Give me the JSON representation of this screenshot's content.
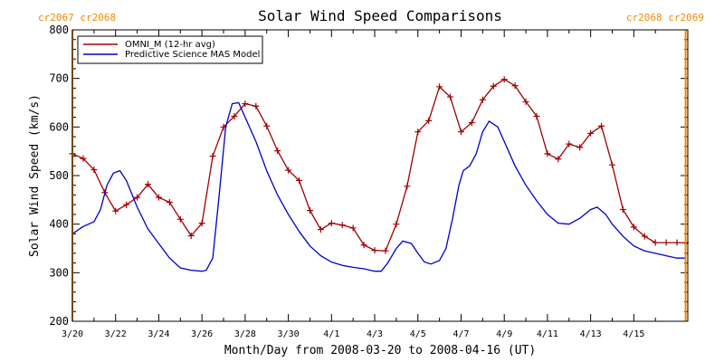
{
  "chart_data": {
    "type": "line",
    "title": "Solar Wind Speed Comparisons",
    "xlabel": "Month/Day from 2008-03-20 to 2008-04-16 (UT)",
    "ylabel": "Solar Wind Speed (km/s)",
    "xlim": [
      0,
      28.5
    ],
    "ylim": [
      200,
      800
    ],
    "y_ticks": [
      200,
      300,
      400,
      500,
      600,
      700,
      800
    ],
    "x_ticks": [
      {
        "x": 0,
        "label": "3/20"
      },
      {
        "x": 2,
        "label": "3/22"
      },
      {
        "x": 4,
        "label": "3/24"
      },
      {
        "x": 6,
        "label": "3/26"
      },
      {
        "x": 8,
        "label": "3/28"
      },
      {
        "x": 10,
        "label": "3/30"
      },
      {
        "x": 12,
        "label": "4/1"
      },
      {
        "x": 14,
        "label": "4/3"
      },
      {
        "x": 16,
        "label": "4/5"
      },
      {
        "x": 18,
        "label": "4/7"
      },
      {
        "x": 20,
        "label": "4/9"
      },
      {
        "x": 22,
        "label": "4/11"
      },
      {
        "x": 24,
        "label": "4/13"
      },
      {
        "x": 26,
        "label": "4/15"
      }
    ],
    "carrington_markers": [
      {
        "x": 0.0,
        "label": "cr2067 cr2068",
        "side": "left"
      },
      {
        "x": 28.4,
        "label": "cr2068 cr2069",
        "side": "right"
      }
    ],
    "legend_position": "top-left",
    "series": [
      {
        "name": "OMNI_M (12-hr avg)",
        "color": "#a00000",
        "marker": "plus",
        "x": [
          0,
          0.5,
          1,
          1.5,
          2,
          2.5,
          3,
          3.5,
          4,
          4.5,
          5,
          5.5,
          6,
          6.5,
          7,
          7.5,
          8,
          8.5,
          9,
          9.5,
          10,
          10.5,
          11,
          11.5,
          12,
          12.5,
          13,
          13.5,
          14,
          14.5,
          15,
          15.5,
          16,
          16.5,
          17,
          17.5,
          18,
          18.5,
          19,
          19.5,
          20,
          20.5,
          21,
          21.5,
          22,
          22.5,
          23,
          23.5,
          24,
          24.5,
          25,
          25.5,
          26,
          26.5,
          27,
          27.5,
          28,
          28.4
        ],
        "y": [
          545,
          535,
          512,
          465,
          427,
          440,
          455,
          482,
          455,
          445,
          410,
          376,
          402,
          540,
          600,
          622,
          648,
          643,
          602,
          551,
          511,
          490,
          428,
          389,
          402,
          398,
          392,
          357,
          346,
          345,
          400,
          478,
          590,
          613,
          683,
          662,
          590,
          609,
          656,
          684,
          698,
          685,
          652,
          622,
          545,
          534,
          565,
          558,
          587,
          602,
          522,
          430,
          394,
          375,
          362,
          362,
          362,
          362
        ]
      },
      {
        "name": "Predictive Science MAS Model",
        "color": "#0000c8",
        "marker": "none",
        "x": [
          0,
          0.5,
          1,
          1.3,
          1.6,
          1.9,
          2.2,
          2.5,
          3,
          3.5,
          4,
          4.5,
          5,
          5.5,
          6,
          6.2,
          6.5,
          6.8,
          7.1,
          7.4,
          7.7,
          8,
          8.5,
          9,
          9.5,
          10,
          10.5,
          11,
          11.5,
          12,
          12.5,
          13,
          13.5,
          14,
          14.3,
          14.6,
          15,
          15.3,
          15.7,
          16,
          16.3,
          16.6,
          17,
          17.3,
          17.6,
          17.9,
          18.1,
          18.4,
          18.7,
          19,
          19.3,
          19.7,
          20,
          20.5,
          21,
          21.5,
          22,
          22.5,
          23,
          23.5,
          24,
          24.3,
          24.7,
          25,
          25.5,
          26,
          26.5,
          27,
          27.5,
          28,
          28.4
        ],
        "y": [
          380,
          395,
          405,
          430,
          480,
          505,
          510,
          490,
          435,
          390,
          360,
          330,
          310,
          305,
          303,
          305,
          330,
          460,
          600,
          648,
          650,
          620,
          570,
          510,
          460,
          420,
          385,
          355,
          335,
          322,
          315,
          311,
          308,
          303,
          303,
          320,
          350,
          365,
          360,
          340,
          322,
          318,
          325,
          350,
          410,
          480,
          510,
          520,
          545,
          590,
          612,
          600,
          570,
          520,
          480,
          448,
          420,
          402,
          400,
          412,
          430,
          435,
          420,
          400,
          375,
          355,
          345,
          340,
          335,
          330,
          330
        ]
      }
    ]
  }
}
